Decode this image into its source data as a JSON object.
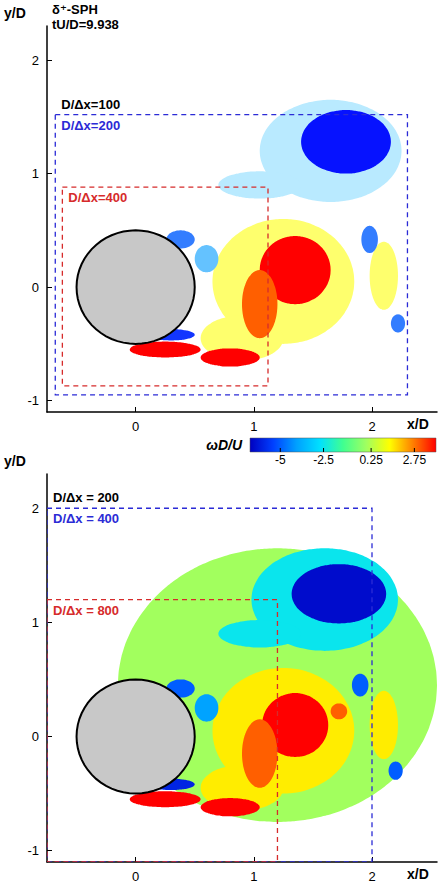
{
  "chart_data": [
    {
      "type": "contour",
      "title": "δ⁺-SPH",
      "subtitle": "tU/D=9.938",
      "x_label": "x/D",
      "y_label": "y/D",
      "xlim": [
        -0.75,
        2.55
      ],
      "ylim": [
        -1.1,
        2.3
      ],
      "xticks": [
        0,
        1,
        2
      ],
      "yticks": [
        -1,
        0,
        1,
        2
      ],
      "cylinder": {
        "x": 0,
        "y": 0,
        "r": 0.5
      },
      "colormap": {
        "range": [
          -6.75,
          4
        ],
        "colors": [
          "#0000ff",
          "#2060ff",
          "#60c0ff",
          "#b0e8ff",
          "#e8f6ff",
          "#f8fcff",
          "#ffff60",
          "#ff8000",
          "#ff0000"
        ]
      },
      "vortices": {
        "x": [
          1.25,
          0.9,
          2.1,
          1.35,
          1.05,
          1.65,
          1.78,
          1.05,
          0.38,
          0.6,
          1.98,
          2.22,
          0.25,
          0.8,
          0.3
        ],
        "y": [
          0.05,
          -0.45,
          0.1,
          0.15,
          -0.15,
          1.2,
          1.28,
          0.9,
          0.42,
          0.25,
          0.42,
          -0.32,
          -0.55,
          -0.62,
          -0.42
        ],
        "rx": [
          0.6,
          0.35,
          0.12,
          0.3,
          0.15,
          0.6,
          0.38,
          0.35,
          0.12,
          0.1,
          0.07,
          0.06,
          0.3,
          0.25,
          0.2
        ],
        "ry": [
          0.55,
          0.2,
          0.3,
          0.3,
          0.3,
          0.45,
          0.28,
          0.12,
          0.08,
          0.12,
          0.12,
          0.08,
          0.07,
          0.08,
          0.05
        ],
        "values": [
          1.2,
          1.2,
          1.2,
          4,
          3,
          -2.5,
          -6.5,
          -2.5,
          -5,
          -4,
          -5,
          -5,
          4,
          4,
          -6
        ]
      },
      "boxes": [
        {
          "label": "D/Δx=100",
          "color": "#000000"
        },
        {
          "label": "D/Δx=200",
          "color": "#2b2bd6",
          "x": [
            -0.68,
            2.3
          ],
          "y": [
            -0.95,
            1.52
          ]
        },
        {
          "label": "D/Δx=400",
          "color": "#d62b2b",
          "x": [
            -0.62,
            1.12
          ],
          "y": [
            -0.87,
            0.88
          ]
        }
      ]
    },
    {
      "type": "contour",
      "x_label": "x/D",
      "y_label": "y/D",
      "xlim": [
        -0.75,
        2.55
      ],
      "ylim": [
        -1.1,
        2.3
      ],
      "xticks": [
        0,
        1,
        2
      ],
      "yticks": [
        -1,
        0,
        1,
        2
      ],
      "cylinder": {
        "x": 0,
        "y": 0,
        "r": 0.5
      },
      "colorbar": {
        "label": "ωD/U",
        "range": [
          -6.75,
          4
        ],
        "ticks": [
          -5,
          -2.5,
          0.25,
          2.75
        ],
        "colors": [
          "#0000c0",
          "#0040ff",
          "#00a0ff",
          "#00e0ff",
          "#40ff90",
          "#a0ff60",
          "#ffff00",
          "#ff8000",
          "#ff0000"
        ]
      },
      "vortices": {
        "x": [
          1.2,
          1.25,
          0.9,
          2.1,
          1.35,
          1.05,
          1.72,
          1.6,
          1.72,
          1.05,
          0.38,
          0.6,
          1.9,
          2.2,
          0.25,
          0.8,
          0.3
        ],
        "y": [
          0.45,
          0.05,
          -0.45,
          0.1,
          0.1,
          -0.15,
          0.22,
          1.2,
          1.25,
          0.9,
          0.42,
          0.25,
          0.45,
          -0.3,
          -0.55,
          -0.62,
          -0.42
        ],
        "rx": [
          1.35,
          0.6,
          0.35,
          0.12,
          0.28,
          0.15,
          0.07,
          0.62,
          0.4,
          0.35,
          0.12,
          0.1,
          0.07,
          0.06,
          0.3,
          0.25,
          0.2
        ],
        "ry": [
          1.2,
          0.55,
          0.2,
          0.3,
          0.28,
          0.3,
          0.07,
          0.45,
          0.26,
          0.12,
          0.08,
          0.12,
          0.1,
          0.08,
          0.07,
          0.08,
          0.05
        ],
        "values": [
          0,
          1.5,
          1.5,
          1.5,
          4,
          3,
          3,
          -2.5,
          -6.5,
          -2.5,
          -5,
          -4,
          -5,
          -5,
          4,
          4,
          -6
        ]
      },
      "boxes": [
        {
          "label": "D/Δx = 200",
          "color": "#000000"
        },
        {
          "label": "D/Δx = 400",
          "color": "#2b2bd6",
          "x": [
            -0.75,
            2.0
          ],
          "y": [
            -1.1,
            2.0
          ]
        },
        {
          "label": "D/Δx = 800",
          "color": "#d62b2b",
          "x": [
            -0.75,
            1.2
          ],
          "y": [
            -1.1,
            1.2
          ]
        }
      ]
    }
  ]
}
